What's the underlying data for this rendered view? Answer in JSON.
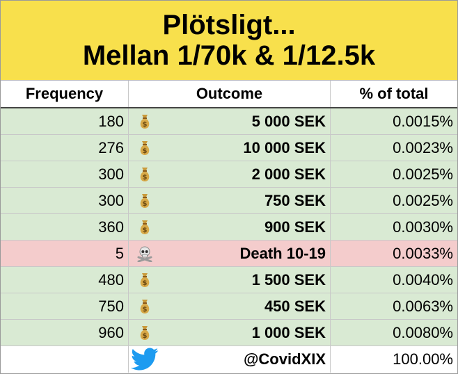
{
  "title": {
    "line1": "Plötsligt...",
    "line2": "Mellan 1/70k & 1/12.5k"
  },
  "header": {
    "frequency": "Frequency",
    "outcome": "Outcome",
    "percent": "% of total"
  },
  "rows": [
    {
      "frequency": "180",
      "icon": "money-bag-icon",
      "outcome": "5 000 SEK",
      "percent": "0.0015%",
      "status": "win"
    },
    {
      "frequency": "276",
      "icon": "money-bag-icon",
      "outcome": "10 000 SEK",
      "percent": "0.0023%",
      "status": "win"
    },
    {
      "frequency": "300",
      "icon": "money-bag-icon",
      "outcome": "2 000 SEK",
      "percent": "0.0025%",
      "status": "win"
    },
    {
      "frequency": "300",
      "icon": "money-bag-icon",
      "outcome": "750 SEK",
      "percent": "0.0025%",
      "status": "win"
    },
    {
      "frequency": "360",
      "icon": "money-bag-icon",
      "outcome": "900 SEK",
      "percent": "0.0030%",
      "status": "win"
    },
    {
      "frequency": "5",
      "icon": "skull-crossbones-icon",
      "outcome": "Death 10-19",
      "percent": "0.0033%",
      "status": "death"
    },
    {
      "frequency": "480",
      "icon": "money-bag-icon",
      "outcome": "1 500 SEK",
      "percent": "0.0040%",
      "status": "win"
    },
    {
      "frequency": "750",
      "icon": "money-bag-icon",
      "outcome": "450 SEK",
      "percent": "0.0063%",
      "status": "win"
    },
    {
      "frequency": "960",
      "icon": "money-bag-icon",
      "outcome": "1 000 SEK",
      "percent": "0.0080%",
      "status": "win"
    }
  ],
  "footer": {
    "frequency": "",
    "icon": "twitter-bird-icon",
    "outcome": "@CovidXIX",
    "percent": "100.00%"
  },
  "colors": {
    "title_bg": "#f8e04c",
    "win_row": "#d9ead3",
    "death_row": "#f4cccc",
    "twitter_blue": "#1d9bf0"
  }
}
